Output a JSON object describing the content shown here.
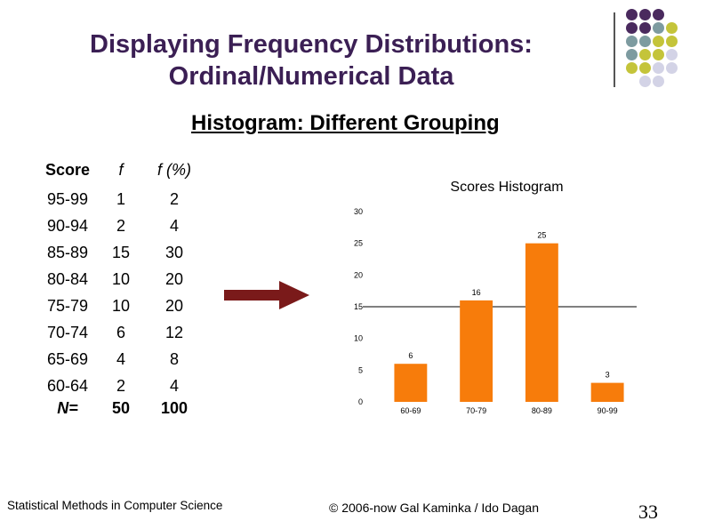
{
  "slide": {
    "title_line1": "Displaying Frequency Distributions:",
    "title_line2": "Ordinal/Numerical Data",
    "subtitle": "Histogram: Different Grouping",
    "footer_left": "Statistical Methods in Computer Science",
    "footer_center": "© 2006-now  Gal Kaminka / Ido Dagan",
    "slide_number": "33",
    "colors": {
      "title": "#3b1f54",
      "arrow": "#7a1a1a",
      "bar": "#f77c0b",
      "dot_purple": "#4a2a5e",
      "dot_slate": "#7d9ba0",
      "dot_olive": "#c4c43a",
      "dot_lavender": "#d3d3e6"
    }
  },
  "table": {
    "headers": [
      "Score",
      "f",
      "f (%)"
    ],
    "rows": [
      [
        "95-99",
        "1",
        "2"
      ],
      [
        "90-94",
        "2",
        "4"
      ],
      [
        "85-89",
        "15",
        "30"
      ],
      [
        "80-84",
        "10",
        "20"
      ],
      [
        "75-79",
        "10",
        "20"
      ],
      [
        "70-74",
        "6",
        "12"
      ],
      [
        "65-69",
        "4",
        "8"
      ],
      [
        "60-64",
        "2",
        "4"
      ]
    ],
    "total": [
      "N=",
      "50",
      "100"
    ]
  },
  "chart_data": {
    "type": "bar",
    "title": "Scores Histogram",
    "categories": [
      "60-69",
      "70-79",
      "80-89",
      "90-99"
    ],
    "values": [
      6,
      16,
      25,
      3
    ],
    "data_labels": [
      "6",
      "16",
      "25",
      "3"
    ],
    "y_ticks": [
      "0",
      "5",
      "10",
      "15",
      "20",
      "25",
      "30"
    ],
    "ylim": [
      0,
      30
    ],
    "xlabel": "",
    "ylabel": "",
    "grid": false
  }
}
